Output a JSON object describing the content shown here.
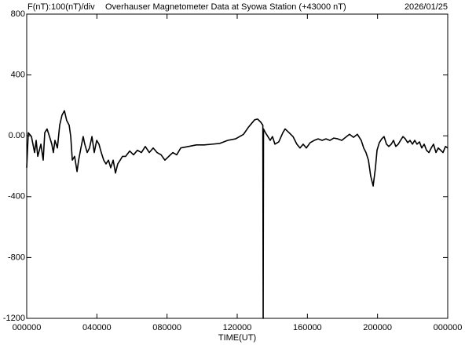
{
  "chart_data": {
    "type": "line",
    "scale_label": "F(nT):100(nT)/div",
    "title": "Overhauser Magnetometer Data at Syowa Station (+43000 nT)",
    "date": "2026/01/25",
    "x_label": "TIME(UT)",
    "xlim": [
      0,
      24
    ],
    "ylim": [
      -1200,
      800
    ],
    "xticks": [
      {
        "value": 0,
        "label": "000000"
      },
      {
        "value": 4,
        "label": "040000"
      },
      {
        "value": 8,
        "label": "080000"
      },
      {
        "value": 12,
        "label": "120000"
      },
      {
        "value": 16,
        "label": "160000"
      },
      {
        "value": 20,
        "label": "200000"
      },
      {
        "value": 24,
        "label": "000000"
      }
    ],
    "yticks": [
      800,
      400,
      {
        "value": 0,
        "label": "0.00"
      },
      -400,
      -800,
      -1200
    ],
    "grid": false,
    "series": [
      {
        "color": "#000000",
        "x": [
          0,
          0.09,
          0.27,
          0.45,
          0.54,
          0.63,
          0.81,
          0.94,
          1.03,
          1.16,
          1.3,
          1.43,
          1.52,
          1.61,
          1.75,
          1.88,
          2.01,
          2.15,
          2.28,
          2.42,
          2.51,
          2.6,
          2.73,
          2.87,
          2.96,
          3.09,
          3.22,
          3.31,
          3.45,
          3.58,
          3.72,
          3.85,
          3.99,
          4.12,
          4.25,
          4.39,
          4.52,
          4.66,
          4.79,
          4.93,
          5.06,
          5.19,
          5.33,
          5.46,
          5.64,
          5.87,
          6.09,
          6.31,
          6.54,
          6.76,
          6.99,
          7.21,
          7.43,
          7.66,
          7.88,
          8.1,
          8.33,
          8.55,
          8.78,
          9.22,
          9.67,
          10.12,
          10.57,
          11.01,
          11.46,
          11.91,
          12.36,
          12.63,
          12.81,
          12.99,
          13.16,
          13.34,
          13.46,
          13.48,
          13.5,
          13.61,
          13.75,
          13.88,
          14.01,
          14.15,
          14.37,
          14.6,
          14.73,
          14.96,
          15.18,
          15.4,
          15.58,
          15.76,
          15.94,
          16.16,
          16.39,
          16.61,
          16.84,
          17.06,
          17.28,
          17.51,
          17.73,
          17.96,
          18.18,
          18.4,
          18.63,
          18.85,
          19.07,
          19.21,
          19.34,
          19.48,
          19.61,
          19.75,
          19.88,
          19.97,
          20.1,
          20.24,
          20.37,
          20.51,
          20.64,
          20.78,
          20.91,
          21.04,
          21.18,
          21.31,
          21.45,
          21.58,
          21.72,
          21.85,
          21.99,
          22.12,
          22.25,
          22.39,
          22.52,
          22.66,
          22.79,
          22.93,
          23.06,
          23.19,
          23.33,
          23.46,
          23.6,
          23.73,
          23.87,
          24.0
        ],
        "values": [
          -210,
          20,
          -5,
          -110,
          -30,
          -135,
          -55,
          -160,
          20,
          45,
          -5,
          -55,
          -110,
          -30,
          -80,
          70,
          135,
          165,
          100,
          70,
          -5,
          -160,
          -135,
          -235,
          -160,
          -80,
          -5,
          -55,
          -110,
          -80,
          -5,
          -110,
          -30,
          -55,
          -110,
          -160,
          -185,
          -160,
          -210,
          -160,
          -245,
          -185,
          -160,
          -135,
          -135,
          -100,
          -125,
          -95,
          -110,
          -70,
          -110,
          -80,
          -110,
          -125,
          -160,
          -135,
          -110,
          -125,
          -80,
          -70,
          -60,
          -60,
          -55,
          -50,
          -30,
          -20,
          10,
          55,
          80,
          105,
          110,
          90,
          70,
          -1200,
          45,
          20,
          -5,
          -30,
          -5,
          -55,
          -40,
          20,
          45,
          20,
          -5,
          -55,
          -80,
          -55,
          -80,
          -45,
          -30,
          -20,
          -30,
          -20,
          -30,
          -15,
          -20,
          -30,
          -10,
          10,
          -10,
          10,
          -30,
          -80,
          -110,
          -160,
          -265,
          -330,
          -210,
          -95,
          -45,
          -20,
          -5,
          -55,
          -70,
          -55,
          -30,
          -70,
          -55,
          -30,
          -5,
          -20,
          -45,
          -30,
          -55,
          -30,
          -55,
          -40,
          -80,
          -55,
          -95,
          -110,
          -80,
          -55,
          -110,
          -80,
          -95,
          -110,
          -70,
          -80
        ]
      }
    ]
  }
}
